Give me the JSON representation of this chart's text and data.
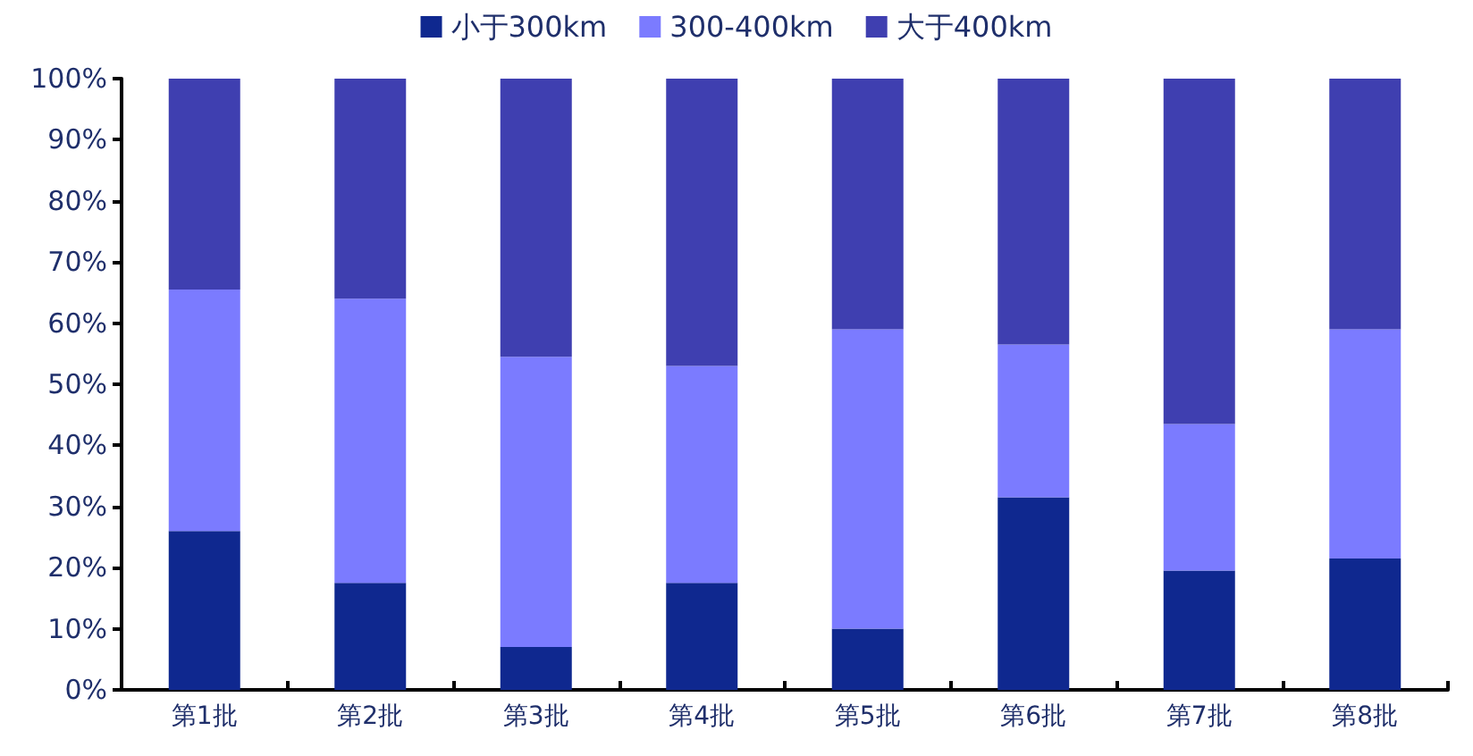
{
  "chart_data": {
    "type": "bar",
    "stacked": true,
    "categories": [
      "第1批",
      "第2批",
      "第3批",
      "第4批",
      "第5批",
      "第6批",
      "第7批",
      "第8批"
    ],
    "series": [
      {
        "name": "小于300km",
        "color": "#0f288f",
        "values": [
          26,
          17.5,
          7,
          17.5,
          10,
          31.5,
          19.5,
          21.5
        ]
      },
      {
        "name": "300-400km",
        "color": "#7b7bff",
        "values": [
          39.5,
          46.5,
          47.5,
          35.5,
          49,
          25,
          24,
          37.5
        ]
      },
      {
        "name": "大于400km",
        "color": "#3f3fb0",
        "values": [
          34.5,
          36,
          45.5,
          47,
          41,
          43.5,
          56.5,
          41
        ]
      }
    ],
    "ylim": [
      0,
      100
    ],
    "yticks": [
      {
        "value": 0,
        "label": "0%"
      },
      {
        "value": 10,
        "label": "10%"
      },
      {
        "value": 20,
        "label": "20%"
      },
      {
        "value": 30,
        "label": "30%"
      },
      {
        "value": 40,
        "label": "40%"
      },
      {
        "value": 50,
        "label": "50%"
      },
      {
        "value": 60,
        "label": "60%"
      },
      {
        "value": 70,
        "label": "70%"
      },
      {
        "value": 80,
        "label": "80%"
      },
      {
        "value": 90,
        "label": "90%"
      },
      {
        "value": 100,
        "label": "100%"
      }
    ],
    "grid": false,
    "legend": "top"
  }
}
